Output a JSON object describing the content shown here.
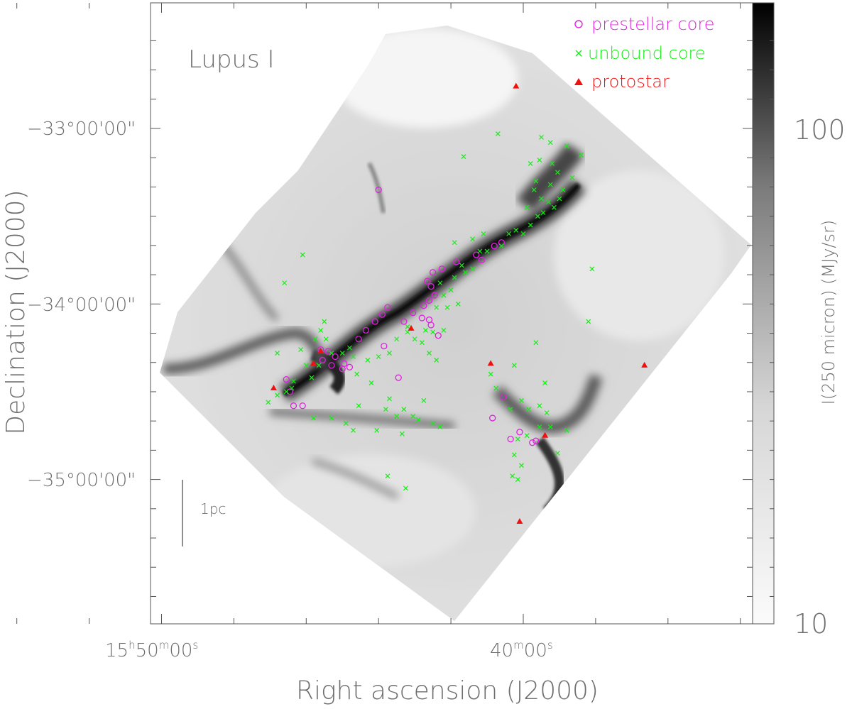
{
  "chart_data": {
    "type": "scatter",
    "region_label": "Lupus I",
    "xlabel": "Right ascension (J2000)",
    "ylabel": "Declination (J2000)",
    "colorbar_label": "I(250 micron) (MJy/sr)",
    "colorbar_ticks": [
      "100",
      "10"
    ],
    "colorbar_scale": "log",
    "colorbar_range": [
      10,
      200
    ],
    "x_ticks": [
      {
        "label_h": "15",
        "label_m": "50",
        "label_s": "00",
        "value": "15h50m00s"
      },
      {
        "label_m": "40",
        "label_s": "00",
        "value": "15h40m00s"
      }
    ],
    "y_ticks": [
      {
        "label": "−33°00'00\"",
        "value": -33.0
      },
      {
        "label": "−34°00'00\"",
        "value": -34.0
      },
      {
        "label": "−35°00'00\"",
        "value": -35.0
      }
    ],
    "ra_range_min": [
      -0.6,
      15.7
    ],
    "dec_range_deg": [
      -35.78,
      -32.3
    ],
    "scalebar_label": "1pc",
    "grid": false,
    "legend_position": "top-right",
    "series": [
      {
        "name": "prestellar core",
        "marker": "circle",
        "color": "#e020e0",
        "points": [
          [
            6.55,
            -34.43
          ],
          [
            6.45,
            -34.5
          ],
          [
            6.1,
            -34.58
          ],
          [
            6.35,
            -34.58
          ],
          [
            5.6,
            -34.26
          ],
          [
            5.4,
            -34.27
          ],
          [
            5.2,
            -34.3
          ],
          [
            5.55,
            -34.32
          ],
          [
            5.3,
            -34.35
          ],
          [
            4.95,
            -34.34
          ],
          [
            5.0,
            -34.37
          ],
          [
            4.8,
            -34.36
          ],
          [
            4.55,
            -34.2
          ],
          [
            4.35,
            -34.15
          ],
          [
            4.1,
            -34.1
          ],
          [
            3.9,
            -34.06
          ],
          [
            3.75,
            -34.02
          ],
          [
            3.3,
            -34.1
          ],
          [
            3.05,
            -34.05
          ],
          [
            2.8,
            -34.08
          ],
          [
            2.6,
            -34.09
          ],
          [
            2.55,
            -34.12
          ],
          [
            2.75,
            -34.01
          ],
          [
            2.6,
            -33.98
          ],
          [
            2.45,
            -33.95
          ],
          [
            2.55,
            -33.9
          ],
          [
            2.65,
            -33.87
          ],
          [
            2.5,
            -33.82
          ],
          [
            2.25,
            -33.8
          ],
          [
            1.85,
            -33.76
          ],
          [
            1.3,
            -33.72
          ],
          [
            1.15,
            -33.75
          ],
          [
            0.8,
            -33.67
          ],
          [
            0.6,
            -33.65
          ],
          [
            3.85,
            -34.24
          ],
          [
            2.35,
            -34.18
          ],
          [
            3.45,
            -34.42
          ],
          [
            0.55,
            -34.53
          ],
          [
            0.85,
            -34.65
          ],
          [
            0.35,
            -34.77
          ],
          [
            0.1,
            -34.73
          ],
          [
            -0.25,
            -34.79
          ],
          [
            -0.35,
            -34.78
          ],
          [
            4.0,
            -33.35
          ]
        ]
      },
      {
        "name": "unbound core",
        "marker": "x",
        "color": "#10f010",
        "points": [
          [
            6.55,
            -34.5
          ],
          [
            6.8,
            -34.52
          ],
          [
            7.05,
            -34.56
          ],
          [
            6.35,
            -34.44
          ],
          [
            6.0,
            -34.35
          ],
          [
            6.15,
            -34.26
          ],
          [
            5.75,
            -34.2
          ],
          [
            5.6,
            -34.15
          ],
          [
            5.5,
            -34.1
          ],
          [
            5.45,
            -34.2
          ],
          [
            5.65,
            -34.35
          ],
          [
            5.85,
            -34.42
          ],
          [
            5.3,
            -34.28
          ],
          [
            5.0,
            -34.28
          ],
          [
            4.8,
            -34.25
          ],
          [
            4.7,
            -34.3
          ],
          [
            4.6,
            -34.4
          ],
          [
            4.3,
            -34.32
          ],
          [
            4.0,
            -34.3
          ],
          [
            3.7,
            -34.28
          ],
          [
            3.5,
            -34.2
          ],
          [
            3.2,
            -34.16
          ],
          [
            3.0,
            -34.2
          ],
          [
            2.8,
            -34.22
          ],
          [
            2.7,
            -34.15
          ],
          [
            2.5,
            -34.16
          ],
          [
            2.2,
            -34.15
          ],
          [
            2.1,
            -34.02
          ],
          [
            2.4,
            -34.02
          ],
          [
            2.2,
            -33.95
          ],
          [
            2.0,
            -33.92
          ],
          [
            2.3,
            -33.88
          ],
          [
            1.9,
            -33.85
          ],
          [
            1.6,
            -33.82
          ],
          [
            1.7,
            -33.78
          ],
          [
            1.4,
            -33.8
          ],
          [
            1.2,
            -33.7
          ],
          [
            1.0,
            -33.7
          ],
          [
            0.6,
            -33.67
          ],
          [
            0.4,
            -33.6
          ],
          [
            0.2,
            -33.58
          ],
          [
            0.0,
            -33.6
          ],
          [
            -0.2,
            -33.55
          ],
          [
            -0.4,
            -33.5
          ],
          [
            -0.55,
            -33.48
          ],
          [
            -0.7,
            -33.42
          ],
          [
            -0.85,
            -33.45
          ],
          [
            -1.0,
            -33.4
          ],
          [
            -0.1,
            -33.45
          ],
          [
            -0.5,
            -33.4
          ],
          [
            -0.75,
            -33.32
          ],
          [
            -0.35,
            -33.3
          ],
          [
            -0.95,
            -33.25
          ],
          [
            -1.1,
            -33.35
          ],
          [
            -0.8,
            -33.2
          ],
          [
            -0.45,
            -33.18
          ],
          [
            -0.2,
            -33.2
          ],
          [
            -0.5,
            -33.05
          ],
          [
            -0.75,
            -33.08
          ],
          [
            -1.2,
            -33.1
          ],
          [
            -1.6,
            -33.15
          ],
          [
            -1.35,
            -33.28
          ],
          [
            0.7,
            -33.03
          ],
          [
            -0.3,
            -33.35
          ],
          [
            1.9,
            -33.65
          ],
          [
            1.4,
            -33.63
          ],
          [
            1.1,
            -33.6
          ],
          [
            2.6,
            -34.28
          ],
          [
            2.4,
            -34.32
          ],
          [
            4.2,
            -34.45
          ],
          [
            3.8,
            -34.6
          ],
          [
            3.5,
            -34.64
          ],
          [
            2.9,
            -34.66
          ],
          [
            2.5,
            -34.68
          ],
          [
            2.3,
            -34.7
          ],
          [
            5.8,
            -34.65
          ],
          [
            5.3,
            -34.65
          ],
          [
            4.9,
            -34.68
          ],
          [
            4.7,
            -34.72
          ],
          [
            6.4,
            -34.48
          ],
          [
            3.2,
            -34.13
          ],
          [
            1.8,
            -34.0
          ],
          [
            0.75,
            -34.48
          ],
          [
            0.9,
            -34.4
          ],
          [
            0.25,
            -34.35
          ],
          [
            0.05,
            -34.55
          ],
          [
            -0.15,
            -34.6
          ],
          [
            -0.45,
            -34.58
          ],
          [
            -0.65,
            -34.62
          ],
          [
            -0.75,
            -34.7
          ],
          [
            -0.45,
            -34.7
          ],
          [
            -0.1,
            -34.75
          ],
          [
            0.15,
            -34.77
          ],
          [
            0.25,
            -34.86
          ],
          [
            0.05,
            -34.92
          ],
          [
            0.15,
            -35.0
          ],
          [
            0.3,
            -34.98
          ],
          [
            -1.2,
            -34.72
          ],
          [
            -0.95,
            -34.85
          ],
          [
            0.35,
            -34.6
          ],
          [
            -0.6,
            -34.45
          ],
          [
            -1.9,
            -33.8
          ],
          [
            -1.8,
            -34.1
          ],
          [
            -0.35,
            -34.22
          ],
          [
            3.25,
            -35.05
          ],
          [
            3.75,
            -34.98
          ],
          [
            1.65,
            -33.16
          ],
          [
            6.1,
            -33.72
          ],
          [
            6.6,
            -33.88
          ],
          [
            3.35,
            -34.74
          ],
          [
            4.05,
            -34.72
          ],
          [
            2.75,
            -34.55
          ],
          [
            3.7,
            -34.54
          ],
          [
            6.8,
            -34.28
          ],
          [
            3.05,
            -34.64
          ],
          [
            4.55,
            -34.58
          ],
          [
            3.3,
            -34.6
          ]
        ]
      },
      {
        "name": "protostar",
        "marker": "triangle",
        "color": "#f01010",
        "points": [
          [
            6.9,
            -34.48
          ],
          [
            5.8,
            -34.34
          ],
          [
            5.6,
            -34.27
          ],
          [
            3.1,
            -34.14
          ],
          [
            0.9,
            -34.34
          ],
          [
            0.2,
            -32.76
          ],
          [
            -0.6,
            -34.75
          ],
          [
            -3.35,
            -34.35
          ],
          [
            0.1,
            -35.24
          ]
        ]
      }
    ]
  }
}
